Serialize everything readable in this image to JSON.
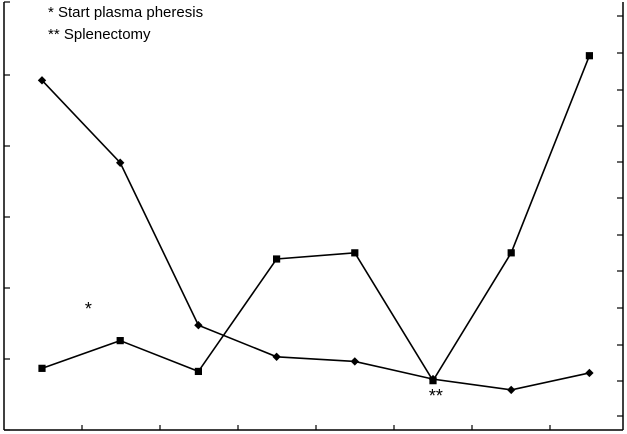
{
  "chart_data": {
    "type": "line",
    "title": "",
    "xlabel": "",
    "ylabel": "",
    "grid": false,
    "legend_position": "top-left",
    "x": [
      1,
      2,
      3,
      4,
      5,
      6,
      7,
      8
    ],
    "series": [
      {
        "marker": "diamond",
        "values": [
          432,
          325,
          114,
          73,
          67,
          44,
          30,
          52
        ]
      },
      {
        "marker": "square",
        "values": [
          58,
          94,
          54,
          200,
          208,
          42,
          208,
          464
        ]
      }
    ],
    "annotations": [
      {
        "text": "*",
        "x": 1.6
      },
      {
        "text": "**",
        "x": 6.05
      }
    ],
    "legend_lines": [
      "* Start plasma pheresis",
      "** Splenectomy"
    ]
  }
}
